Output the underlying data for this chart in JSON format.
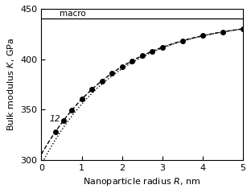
{
  "xlabel": "Nanoparticle radius $R$, nm",
  "ylabel": "Bulk modulus $K$, GPa",
  "xlim": [
    0,
    5
  ],
  "ylim": [
    300,
    450
  ],
  "yticks": [
    300,
    350,
    400,
    450
  ],
  "xticks": [
    0,
    1,
    2,
    3,
    4,
    5
  ],
  "macro_value": 440,
  "macro_label": "macro",
  "curve1_label": "1",
  "curve2_label": "2",
  "background_color": "#ffffff",
  "marker_R": [
    0.35,
    0.55,
    0.75,
    1.0,
    1.25,
    1.5,
    1.75,
    2.0,
    2.25,
    2.5,
    2.75,
    3.0,
    3.5,
    4.0,
    4.5,
    5.0
  ]
}
